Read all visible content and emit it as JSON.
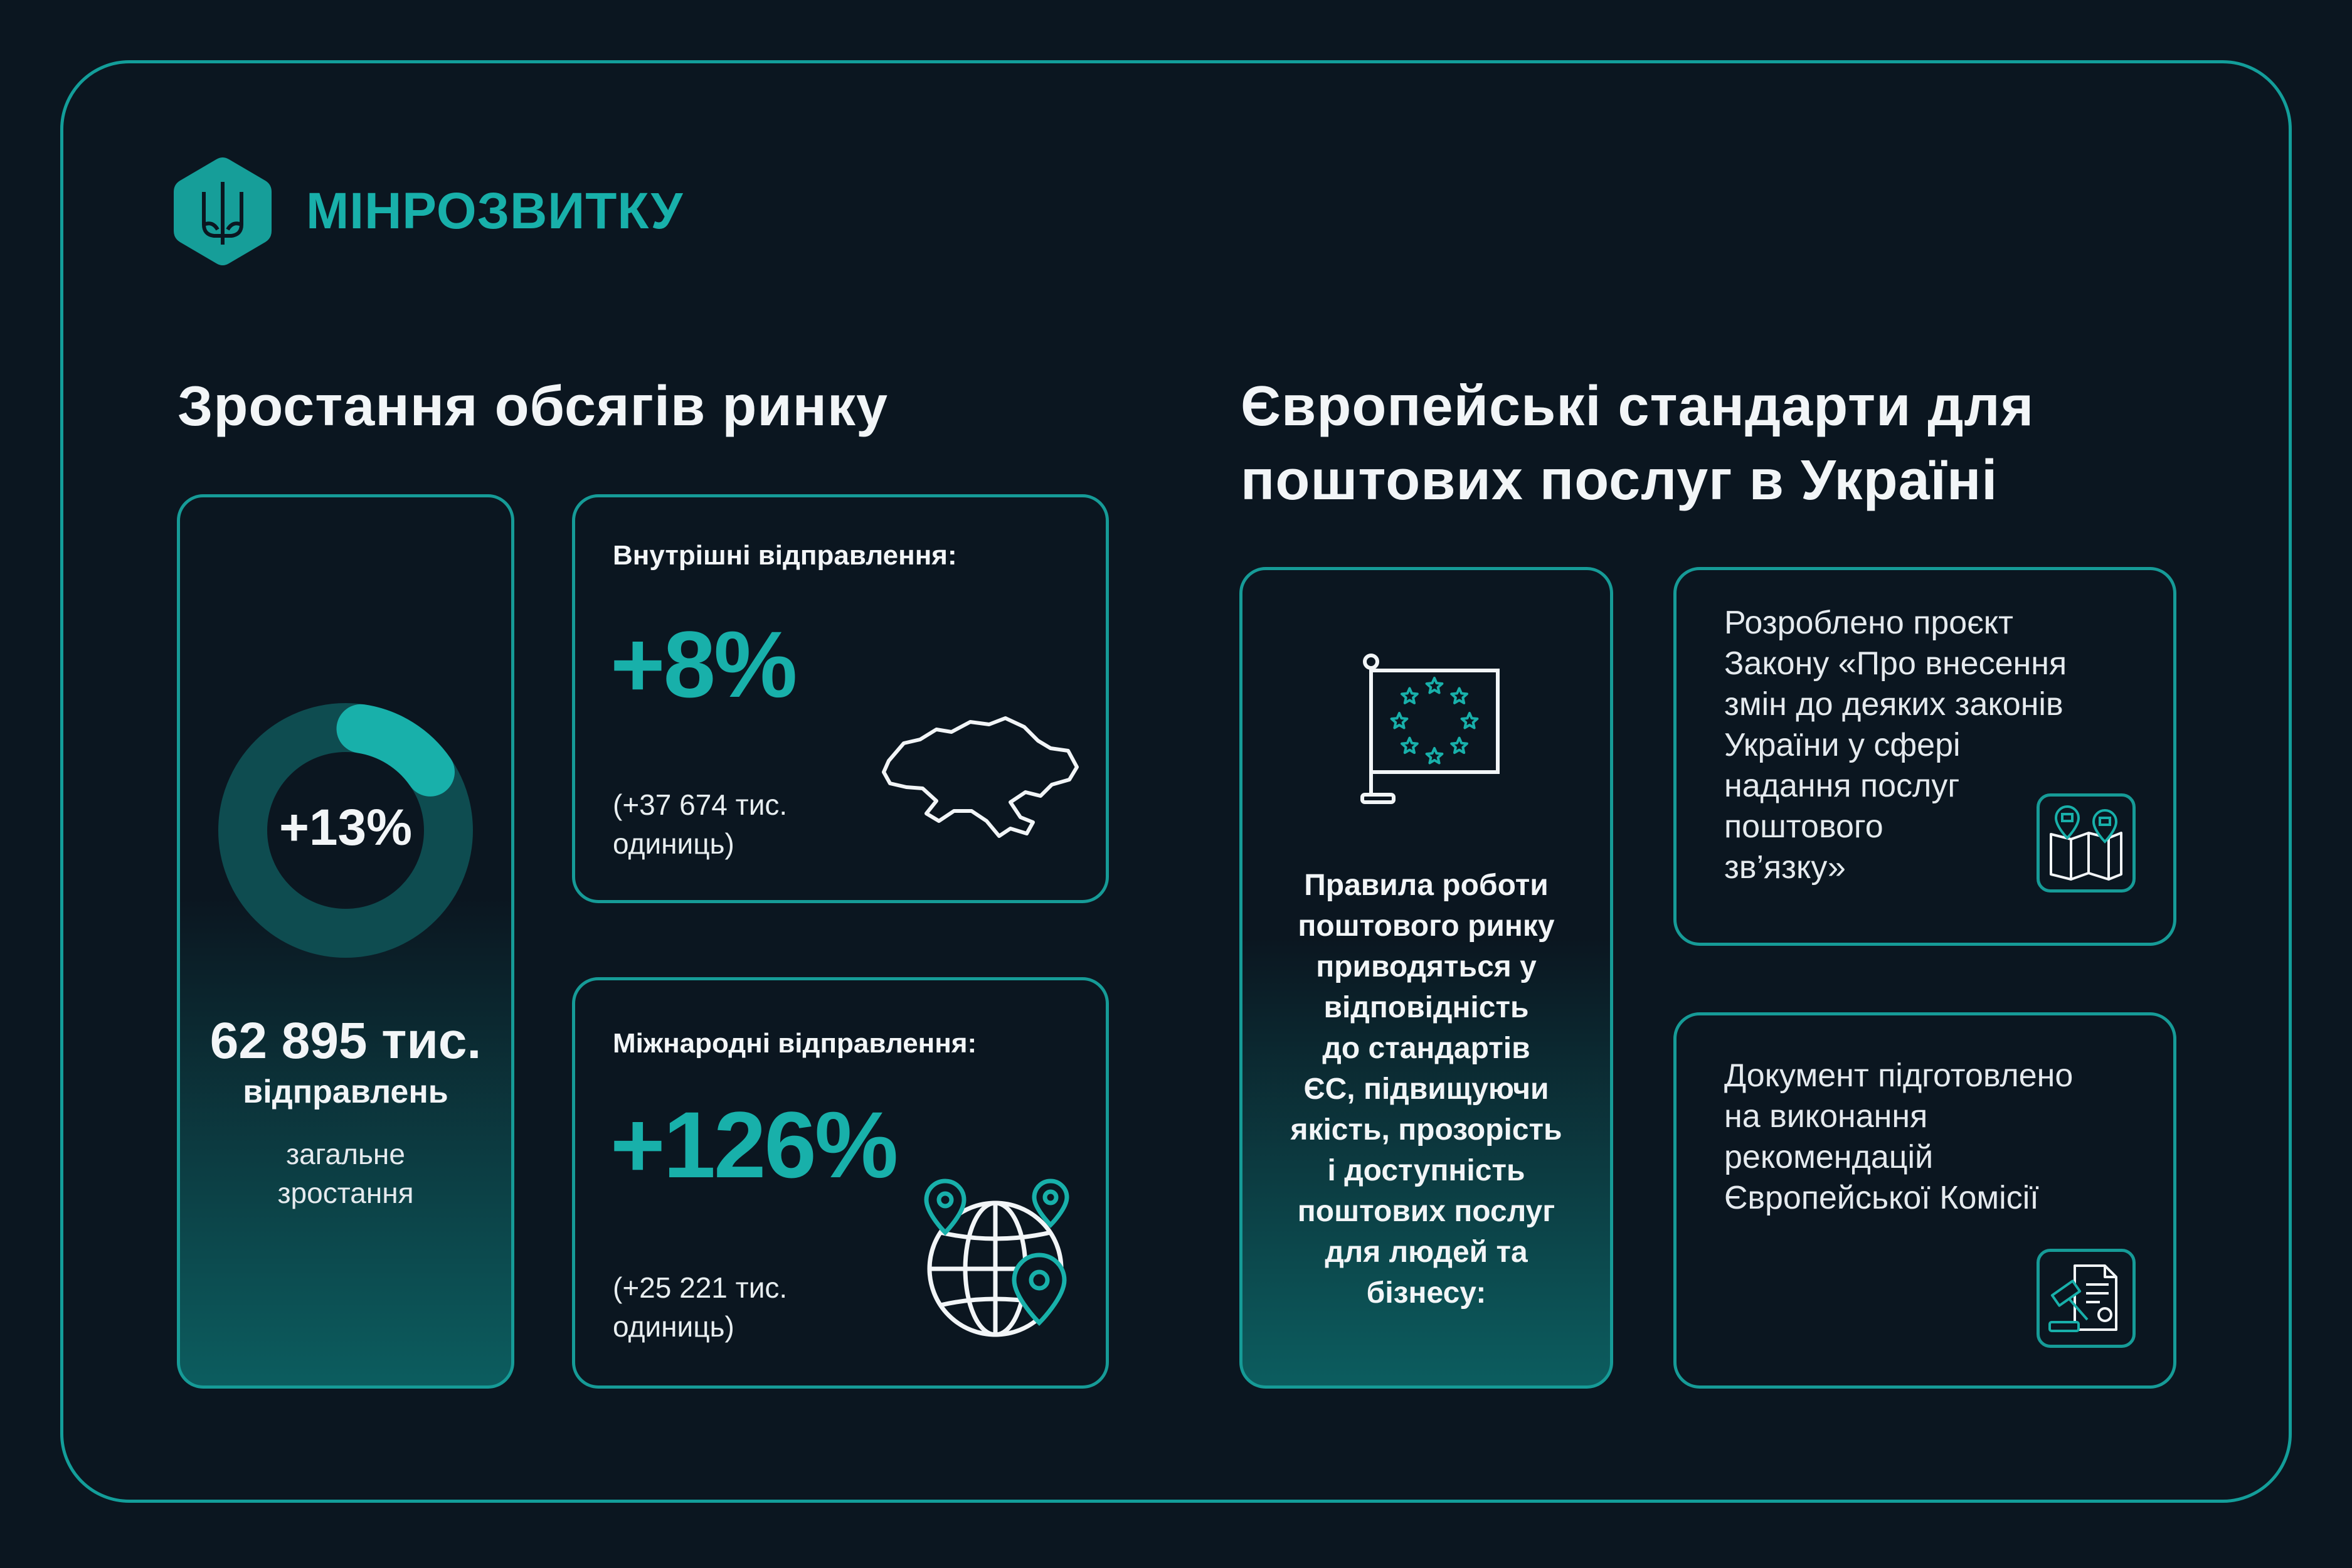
{
  "brand": {
    "name": "МІНРОЗВИТКУ",
    "logo": "tryzub-hexagon-icon",
    "accent": "#18b0aa"
  },
  "market": {
    "heading": "Зростання обсягів ринку",
    "total": {
      "ring_label": "+13%",
      "ring_fill_percent": 13,
      "value": "62 895 тис.",
      "unit": "відправлень",
      "caption_1": "загальне",
      "caption_2": "зростання"
    },
    "domestic": {
      "title": "Внутрішні відправлення:",
      "percent": "+8%",
      "detail_1": "(+37 674 тис.",
      "detail_2": "одиниць)",
      "icon": "ukraine-map-icon"
    },
    "international": {
      "title": "Міжнародні відправлення:",
      "percent": "+126%",
      "detail_1": "(+25 221 тис.",
      "detail_2": "одиниць)",
      "icon": "globe-pins-icon"
    }
  },
  "eu": {
    "heading_1": "Європейські стандарти для",
    "heading_2": "поштових послуг в Україні",
    "rules": {
      "icon": "eu-flag-icon",
      "lines": [
        "Правила роботи",
        "поштового ринку",
        "приводяться у",
        "відповідність",
        "до стандартів",
        "ЄС, підвищуючи",
        "якість, прозорість",
        "і доступність",
        "поштових послуг",
        "для людей та",
        "бізнесу:"
      ]
    },
    "law": {
      "icon": "map-mail-icon",
      "lines": [
        "Розроблено проєкт",
        "Закону «Про внесення",
        "змін до деяких законів",
        "України у сфері",
        "надання послуг",
        "поштового",
        "зв’язку»"
      ]
    },
    "commission": {
      "icon": "gavel-document-icon",
      "lines": [
        "Документ підготовлено",
        "на виконання",
        "рекомендацій",
        "Європейської Комісії"
      ]
    }
  }
}
